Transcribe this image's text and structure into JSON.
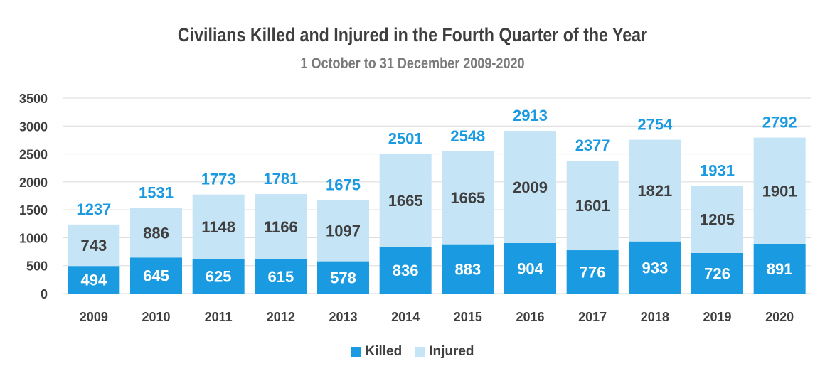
{
  "chart_data": {
    "type": "bar",
    "stacked": true,
    "title": "Civilians Killed and Injured in the Fourth Quarter of the Year",
    "subtitle": "1 October to 31 December 2009-2020",
    "categories": [
      "2009",
      "2010",
      "2011",
      "2012",
      "2013",
      "2014",
      "2015",
      "2016",
      "2017",
      "2018",
      "2019",
      "2020"
    ],
    "series": [
      {
        "name": "Killed",
        "color": "#1a9ae0",
        "values": [
          494,
          645,
          625,
          615,
          578,
          836,
          883,
          904,
          776,
          933,
          726,
          891
        ]
      },
      {
        "name": "Injured",
        "color": "#c5e5f7",
        "values": [
          743,
          886,
          1148,
          1166,
          1097,
          1665,
          1665,
          2009,
          1601,
          1821,
          1205,
          1901
        ]
      }
    ],
    "totals": [
      1237,
      1531,
      1773,
      1781,
      1675,
      2501,
      2548,
      2913,
      2377,
      2754,
      1931,
      2792
    ],
    "total_label_color": "#1a9ae0",
    "yticks": [
      0,
      500,
      1000,
      1500,
      2000,
      2500,
      3000,
      3500
    ],
    "ylim": [
      0,
      3500
    ],
    "xlabel": "",
    "ylabel": "",
    "grid": true,
    "legend_position": "bottom"
  }
}
